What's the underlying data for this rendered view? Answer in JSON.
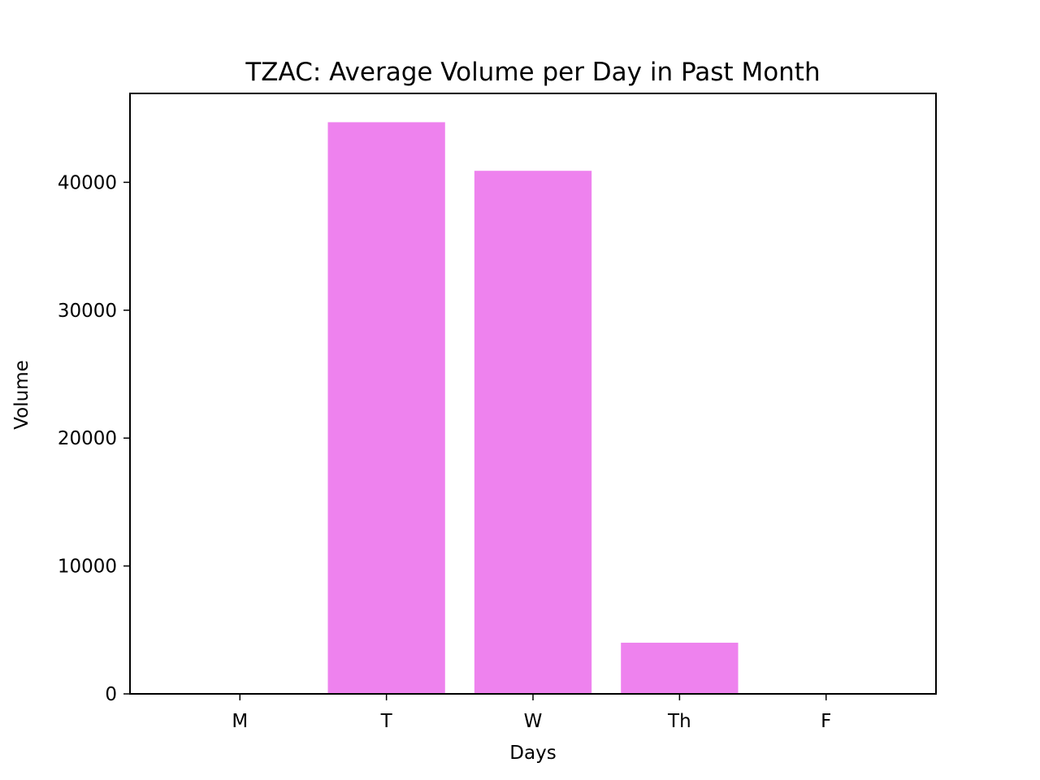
{
  "chart_data": {
    "type": "bar",
    "title": "TZAC: Average Volume per Day in Past Month",
    "xlabel": "Days",
    "ylabel": "Volume",
    "categories": [
      "M",
      "T",
      "W",
      "Th",
      "F"
    ],
    "values": [
      0,
      44700,
      40900,
      4000,
      0
    ],
    "ylim": [
      0,
      46950
    ],
    "yticks": [
      0,
      10000,
      20000,
      30000,
      40000
    ],
    "ytick_labels": [
      "0",
      "10000",
      "20000",
      "30000",
      "40000"
    ],
    "bar_color": "#ee82ee",
    "grid": false,
    "legend": "none"
  }
}
